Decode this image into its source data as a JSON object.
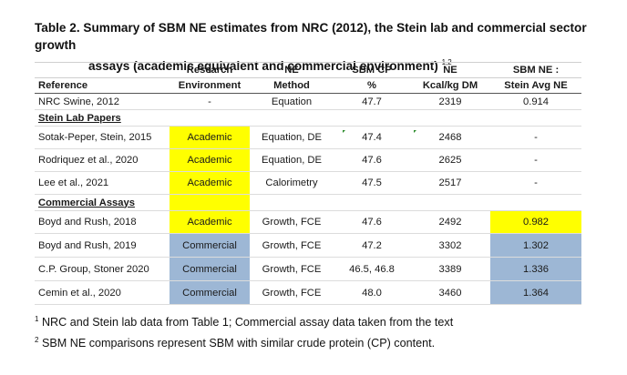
{
  "title": {
    "line1": "Table 2.  Summary of SBM NE estimates from NRC (2012), the Stein lab and commercial sector growth",
    "line2": "assays (academic equivalent and commercial environment)",
    "superscript": "1,2"
  },
  "table": {
    "header_row1": [
      "",
      "Research",
      "NE",
      "SBM CP",
      "NE",
      "SBM NE :"
    ],
    "header_row2": [
      "Reference",
      "Environment",
      "Method",
      "%",
      "Kcal/kg DM",
      "Stein Avg NE"
    ],
    "nrc_row": [
      "NRC Swine, 2012",
      "-",
      "Equation",
      "47.7",
      "2319",
      "0.914"
    ],
    "section_stein": "Stein Lab Papers",
    "stein_rows": [
      [
        "Sotak-Peper, Stein, 2015",
        "Academic",
        "Equation, DE",
        "47.4",
        "2468",
        "-"
      ],
      [
        "Rodriquez et al., 2020",
        "Academic",
        "Equation, DE",
        "47.6",
        "2625",
        "-"
      ],
      [
        "Lee et al., 2021",
        "Academic",
        "Calorimetry",
        "47.5",
        "2517",
        "-"
      ]
    ],
    "section_commercial": "Commercial Assays",
    "commercial_rows": [
      [
        "Boyd and Rush, 2018",
        "Academic",
        "Growth, FCE",
        "47.6",
        "2492",
        "0.982"
      ],
      [
        "Boyd and Rush, 2019",
        "Commercial",
        "Growth, FCE",
        "47.2",
        "3302",
        "1.302"
      ],
      [
        "C.P. Group, Stoner 2020",
        "Commercial",
        "Growth, FCE",
        "46.5, 46.8",
        "3389",
        "1.336"
      ],
      [
        "Cemin et al., 2020",
        "Commercial",
        "Growth, FCE",
        "48.0",
        "3460",
        "1.364"
      ]
    ]
  },
  "footnotes": [
    {
      "marker": "1",
      "text": "NRC and Stein lab data from Table 1; Commercial assay data taken from the text"
    },
    {
      "marker": "2",
      "text": "SBM NE comparisons represent SBM with similar crude protein (CP) content."
    }
  ],
  "colors": {
    "academic_highlight": "#ffff00",
    "commercial_highlight": "#9db7d5"
  }
}
